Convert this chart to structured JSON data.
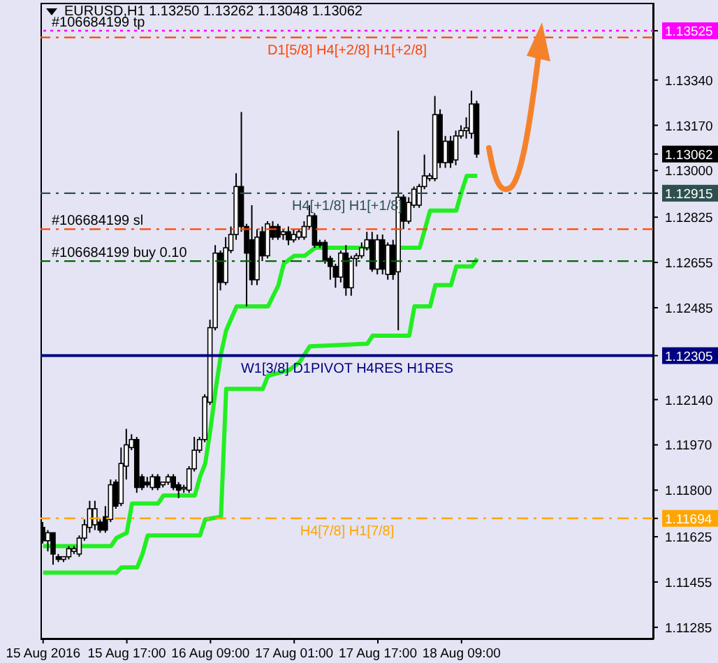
{
  "chart_data": {
    "type": "candlestick",
    "title": "EURUSD,H1  1.13250 1.13262 1.13048 1.13062",
    "x": [
      "2016-08-15T01:00",
      "2016-08-15T02:00",
      "2016-08-15T03:00",
      "2016-08-15T04:00",
      "2016-08-15T05:00",
      "2016-08-15T06:00",
      "2016-08-15T07:00",
      "2016-08-15T08:00",
      "2016-08-15T09:00",
      "2016-08-15T10:00",
      "2016-08-15T11:00",
      "2016-08-15T12:00",
      "2016-08-15T13:00",
      "2016-08-15T14:00",
      "2016-08-15T15:00",
      "2016-08-15T16:00",
      "2016-08-15T17:00",
      "2016-08-15T18:00",
      "2016-08-15T19:00",
      "2016-08-15T20:00",
      "2016-08-15T21:00",
      "2016-08-15T22:00",
      "2016-08-15T23:00",
      "2016-08-16T00:00",
      "2016-08-16T01:00",
      "2016-08-16T02:00",
      "2016-08-16T03:00",
      "2016-08-16T04:00",
      "2016-08-16T05:00",
      "2016-08-16T06:00",
      "2016-08-16T07:00",
      "2016-08-16T08:00",
      "2016-08-16T09:00",
      "2016-08-16T10:00",
      "2016-08-16T11:00",
      "2016-08-16T12:00",
      "2016-08-16T13:00",
      "2016-08-16T14:00",
      "2016-08-16T15:00",
      "2016-08-16T16:00",
      "2016-08-16T17:00",
      "2016-08-16T18:00",
      "2016-08-16T19:00",
      "2016-08-16T20:00",
      "2016-08-16T21:00",
      "2016-08-16T22:00",
      "2016-08-16T23:00",
      "2016-08-17T00:00",
      "2016-08-17T01:00",
      "2016-08-17T02:00",
      "2016-08-17T03:00",
      "2016-08-17T04:00",
      "2016-08-17T05:00",
      "2016-08-17T06:00",
      "2016-08-17T07:00",
      "2016-08-17T08:00",
      "2016-08-17T09:00",
      "2016-08-17T10:00",
      "2016-08-17T11:00",
      "2016-08-17T12:00",
      "2016-08-17T13:00",
      "2016-08-17T14:00",
      "2016-08-17T15:00",
      "2016-08-17T16:00",
      "2016-08-17T17:00",
      "2016-08-17T18:00",
      "2016-08-17T19:00",
      "2016-08-17T20:00",
      "2016-08-17T21:00",
      "2016-08-17T22:00",
      "2016-08-17T23:00",
      "2016-08-18T00:00",
      "2016-08-18T01:00",
      "2016-08-18T02:00",
      "2016-08-18T03:00",
      "2016-08-18T04:00",
      "2016-08-18T05:00",
      "2016-08-18T06:00",
      "2016-08-18T07:00",
      "2016-08-18T08:00",
      "2016-08-18T09:00",
      "2016-08-18T10:00",
      "2016-08-18T11:00",
      "2016-08-18T12:00"
    ],
    "ohlc": [
      [
        1.1166,
        1.1168,
        1.116,
        1.1161
      ],
      [
        1.1161,
        1.1165,
        1.1157,
        1.1164
      ],
      [
        1.1164,
        1.1164,
        1.1152,
        1.1156
      ],
      [
        1.1155,
        1.1156,
        1.1153,
        1.1154
      ],
      [
        1.1154,
        1.1155,
        1.1153,
        1.1155
      ],
      [
        1.1155,
        1.1159,
        1.1154,
        1.1158
      ],
      [
        1.1157,
        1.1159,
        1.1156,
        1.1158
      ],
      [
        1.1156,
        1.1163,
        1.1155,
        1.1162
      ],
      [
        1.1162,
        1.1169,
        1.1161,
        1.1167
      ],
      [
        1.1166,
        1.1176,
        1.1164,
        1.1173
      ],
      [
        1.1167,
        1.1176,
        1.1165,
        1.1173
      ],
      [
        1.1168,
        1.1169,
        1.1164,
        1.1165
      ],
      [
        1.117,
        1.1174,
        1.1164,
        1.1165
      ],
      [
        1.1169,
        1.1184,
        1.1168,
        1.1182
      ],
      [
        1.1183,
        1.1184,
        1.1173,
        1.1174
      ],
      [
        1.1175,
        1.1196,
        1.1174,
        1.119
      ],
      [
        1.1189,
        1.1203,
        1.1184,
        1.1197
      ],
      [
        1.1196,
        1.1201,
        1.1195,
        1.1199
      ],
      [
        1.1199,
        1.12,
        1.1179,
        1.1181
      ],
      [
        1.1185,
        1.1186,
        1.118,
        1.1181
      ],
      [
        1.1183,
        1.1185,
        1.1181,
        1.1182
      ],
      [
        1.1181,
        1.1186,
        1.118,
        1.1185
      ],
      [
        1.1185,
        1.1186,
        1.118,
        1.1181
      ],
      [
        1.1182,
        1.1183,
        1.1181,
        1.1183
      ],
      [
        1.1183,
        1.1186,
        1.1182,
        1.1185
      ],
      [
        1.1185,
        1.1186,
        1.118,
        1.1181
      ],
      [
        1.1182,
        1.1183,
        1.1177,
        1.118
      ],
      [
        1.1181,
        1.1182,
        1.1179,
        1.1181
      ],
      [
        1.118,
        1.1189,
        1.1179,
        1.1188
      ],
      [
        1.1188,
        1.12,
        1.1187,
        1.1195
      ],
      [
        1.1195,
        1.12,
        1.1194,
        1.1199
      ],
      [
        1.1199,
        1.1216,
        1.1198,
        1.1215
      ],
      [
        1.1213,
        1.1244,
        1.1212,
        1.1241
      ],
      [
        1.1241,
        1.1272,
        1.124,
        1.1269
      ],
      [
        1.1269,
        1.127,
        1.1255,
        1.1258
      ],
      [
        1.1258,
        1.1275,
        1.1257,
        1.1271
      ],
      [
        1.127,
        1.1279,
        1.1269,
        1.1276
      ],
      [
        1.1276,
        1.1299,
        1.1274,
        1.1294
      ],
      [
        1.1294,
        1.1322,
        1.1277,
        1.1279
      ],
      [
        1.1279,
        1.128,
        1.1249,
        1.1269
      ],
      [
        1.1274,
        1.1287,
        1.1257,
        1.1259
      ],
      [
        1.1259,
        1.1278,
        1.1257,
        1.1275
      ],
      [
        1.1277,
        1.1279,
        1.1266,
        1.1268
      ],
      [
        1.1268,
        1.1281,
        1.1267,
        1.128
      ],
      [
        1.1279,
        1.1281,
        1.1274,
        1.1275
      ],
      [
        1.1279,
        1.128,
        1.1274,
        1.1275
      ],
      [
        1.1276,
        1.1278,
        1.1274,
        1.1277
      ],
      [
        1.1277,
        1.1279,
        1.1272,
        1.1274
      ],
      [
        1.1274,
        1.1278,
        1.1273,
        1.1276
      ],
      [
        1.1275,
        1.1278,
        1.1274,
        1.1277
      ],
      [
        1.1275,
        1.1281,
        1.1274,
        1.1279
      ],
      [
        1.1279,
        1.1287,
        1.1278,
        1.1283
      ],
      [
        1.1283,
        1.1284,
        1.1271,
        1.1272
      ],
      [
        1.1273,
        1.1274,
        1.1271,
        1.1272
      ],
      [
        1.1273,
        1.1274,
        1.1265,
        1.1266
      ],
      [
        1.1267,
        1.1268,
        1.1259,
        1.1264
      ],
      [
        1.1264,
        1.1265,
        1.1256,
        1.126
      ],
      [
        1.126,
        1.127,
        1.1258,
        1.1269
      ],
      [
        1.1269,
        1.1272,
        1.1253,
        1.1256
      ],
      [
        1.1256,
        1.1268,
        1.1253,
        1.1267
      ],
      [
        1.1267,
        1.1269,
        1.1264,
        1.1268
      ],
      [
        1.1268,
        1.1273,
        1.1267,
        1.1271
      ],
      [
        1.1271,
        1.1277,
        1.127,
        1.1274
      ],
      [
        1.1274,
        1.1277,
        1.1262,
        1.1263
      ],
      [
        1.1263,
        1.1276,
        1.1261,
        1.1274
      ],
      [
        1.1274,
        1.1276,
        1.1261,
        1.1263
      ],
      [
        1.1261,
        1.1273,
        1.1259,
        1.1272
      ],
      [
        1.1272,
        1.1274,
        1.1259,
        1.1261
      ],
      [
        1.1262,
        1.1315,
        1.124,
        1.129
      ],
      [
        1.129,
        1.1291,
        1.1278,
        1.1281
      ],
      [
        1.1281,
        1.129,
        1.128,
        1.1288
      ],
      [
        1.1287,
        1.1294,
        1.1286,
        1.1293
      ],
      [
        1.1287,
        1.1295,
        1.1286,
        1.1294
      ],
      [
        1.1294,
        1.1306,
        1.1293,
        1.1298
      ],
      [
        1.1297,
        1.1299,
        1.1296,
        1.1298
      ],
      [
        1.1297,
        1.1328,
        1.1296,
        1.1321
      ],
      [
        1.1321,
        1.1323,
        1.1301,
        1.1303
      ],
      [
        1.1303,
        1.1313,
        1.1301,
        1.1311
      ],
      [
        1.1311,
        1.1313,
        1.1301,
        1.1303
      ],
      [
        1.1304,
        1.1315,
        1.1302,
        1.1313
      ],
      [
        1.1313,
        1.1317,
        1.1312,
        1.1315
      ],
      [
        1.1315,
        1.132,
        1.1312,
        1.1316
      ],
      [
        1.1314,
        1.133,
        1.1312,
        1.1325
      ],
      [
        1.1325,
        1.13262,
        1.13048,
        1.13062
      ]
    ],
    "series": [
      {
        "type": "line",
        "color": "#22ee22",
        "x": [
          "2016-08-15T01:00",
          "2016-08-15T14:00",
          "2016-08-15T15:00",
          "2016-08-15T17:00",
          "2016-08-15T18:00",
          "2016-08-15T23:00",
          "2016-08-16T00:00",
          "2016-08-16T06:00",
          "2016-08-16T07:00",
          "2016-08-16T08:00",
          "2016-08-16T09:00",
          "2016-08-16T10:00",
          "2016-08-16T11:00",
          "2016-08-16T12:00",
          "2016-08-16T14:00",
          "2016-08-16T20:00",
          "2016-08-16T22:00",
          "2016-08-16T23:00",
          "2016-08-17T01:00",
          "2016-08-17T03:00",
          "2016-08-17T05:00",
          "2016-08-18T01:00",
          "2016-08-18T02:00",
          "2016-08-18T03:00",
          "2016-08-18T08:00",
          "2016-08-18T09:00",
          "2016-08-18T10:00",
          "2016-08-18T12:00"
        ],
        "values": [
          1.1159,
          1.1159,
          1.1162,
          1.1164,
          1.1175,
          1.1175,
          1.1178,
          1.1178,
          1.1185,
          1.119,
          1.1203,
          1.1218,
          1.1231,
          1.124,
          1.1249,
          1.1249,
          1.1257,
          1.1265,
          1.1268,
          1.1268,
          1.1271,
          1.1271,
          1.1278,
          1.1285,
          1.1285,
          1.1292,
          1.1298,
          1.1298
        ]
      },
      {
        "type": "line",
        "color": "#22ee22",
        "x": [
          "2016-08-15T01:00",
          "2016-08-15T15:00",
          "2016-08-15T16:00",
          "2016-08-15T19:00",
          "2016-08-15T20:00",
          "2016-08-15T21:00",
          "2016-08-16T07:00",
          "2016-08-16T08:00",
          "2016-08-16T11:00",
          "2016-08-16T12:00",
          "2016-08-16T19:00",
          "2016-08-16T20:00",
          "2016-08-17T00:00",
          "2016-08-17T02:00",
          "2016-08-17T04:00",
          "2016-08-17T15:00",
          "2016-08-17T16:00",
          "2016-08-17T23:00",
          "2016-08-18T00:00",
          "2016-08-18T03:00",
          "2016-08-18T04:00",
          "2016-08-18T07:00",
          "2016-08-18T08:00",
          "2016-08-18T11:00",
          "2016-08-18T12:00"
        ],
        "values": [
          1.1149,
          1.1149,
          1.1151,
          1.1151,
          1.1156,
          1.1163,
          1.1163,
          1.1169,
          1.117,
          1.1218,
          1.1218,
          1.1223,
          1.1225,
          1.1228,
          1.1234,
          1.1235,
          1.1238,
          1.1238,
          1.1249,
          1.1249,
          1.1257,
          1.1257,
          1.1264,
          1.1264,
          1.1267
        ]
      }
    ],
    "xlim": [
      "2016-08-15T00:30",
      "2016-08-19T21:45"
    ],
    "xticks": [
      {
        "value": "2016-08-15T01:00",
        "label": "15 Aug 2016"
      },
      {
        "value": "2016-08-15T17:00",
        "label": "15 Aug 17:00"
      },
      {
        "value": "2016-08-16T09:00",
        "label": "16 Aug 09:00"
      },
      {
        "value": "2016-08-17T01:00",
        "label": "17 Aug 01:00"
      },
      {
        "value": "2016-08-17T17:00",
        "label": "17 Aug 17:00"
      },
      {
        "value": "2016-08-18T09:00",
        "label": "18 Aug 09:00"
      }
    ],
    "ylim": [
      1.1124,
      1.1363
    ],
    "yticks": [
      1.13525,
      {
        "value": 1.1334,
        "label": "1.13340"
      },
      {
        "value": 1.1317,
        "label": "1.13170"
      },
      1.13062,
      {
        "value": 1.13,
        "label": "1.13000"
      },
      1.12915,
      1.12825,
      1.12655,
      1.12485,
      1.12305,
      {
        "value": 1.1214,
        "label": "1.12140"
      },
      {
        "value": 1.1197,
        "label": "1.11970"
      },
      {
        "value": 1.118,
        "label": "1.11800"
      },
      1.11694,
      1.11625,
      1.11455,
      1.11285
    ],
    "ref_lines": [
      {
        "axis": "y",
        "value": 1.13525,
        "label": "#106684199 tp",
        "color": "#ff00ff",
        "line_style": "dotted"
      },
      {
        "axis": "y",
        "value": 1.135,
        "label": "D1[5/8] H4[+2/8] H1[+2/8]",
        "color": "#ff4500",
        "line_style": "dashed"
      },
      {
        "axis": "y",
        "value": 1.12915,
        "label": "H4[+1/8] H1[+1/8]",
        "color": "#2f4f4f",
        "line_style": "dashed"
      },
      {
        "axis": "y",
        "value": 1.1278,
        "label": "#106684199 sl",
        "color": "#ff4500",
        "line_style": "dashed"
      },
      {
        "axis": "y",
        "value": 1.1266,
        "label": "#106684199 buy 0.10",
        "color": "#006400",
        "line_style": "dashed"
      },
      {
        "axis": "y",
        "value": 1.12305,
        "label": "W1[3/8] D1PIVOT H4RES H1RES",
        "color": "#000080",
        "line_style": "solid"
      },
      {
        "axis": "y",
        "value": 1.11694,
        "label": "H4[7/8] H1[7/8]",
        "color": "#ffa500",
        "line_style": "dashed"
      }
    ]
  }
}
